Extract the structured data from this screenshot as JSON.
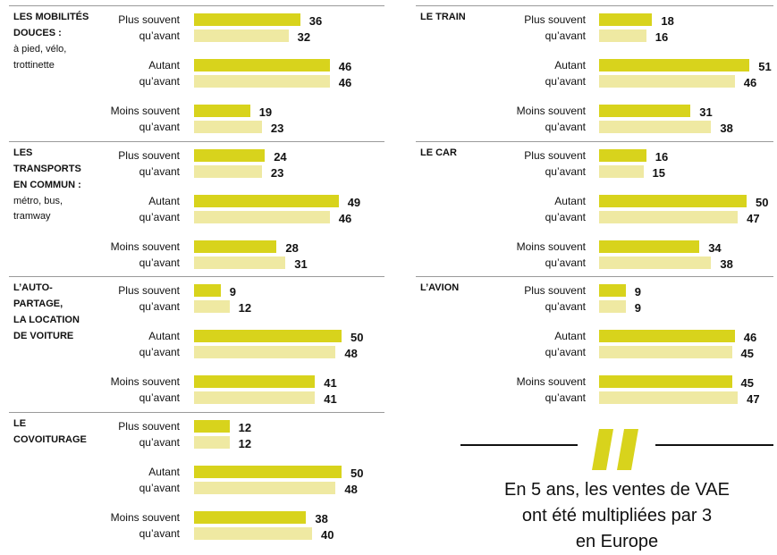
{
  "chart_data": [
    {
      "type": "bar",
      "title": [
        "LES MOBILITÉS",
        "DOUCES :"
      ],
      "subtitle": [
        "à pied, vélo,",
        "trottinette"
      ],
      "categories": [
        [
          "Plus souvent",
          "qu’avant"
        ],
        [
          "Autant",
          "qu’avant"
        ],
        [
          "Moins souvent",
          "qu’avant"
        ]
      ],
      "series": [
        {
          "color": "#d8d31c",
          "values": [
            36,
            46,
            19
          ]
        },
        {
          "color": "#efe9a2",
          "values": [
            32,
            46,
            23
          ]
        }
      ]
    },
    {
      "type": "bar",
      "title": [
        "LES",
        "TRANSPORTS",
        "EN COMMUN :"
      ],
      "subtitle": [
        "métro, bus,",
        "tramway"
      ],
      "categories": [
        [
          "Plus souvent",
          "qu’avant"
        ],
        [
          "Autant",
          "qu’avant"
        ],
        [
          "Moins souvent",
          "qu’avant"
        ]
      ],
      "series": [
        {
          "color": "#d8d31c",
          "values": [
            24,
            49,
            28
          ]
        },
        {
          "color": "#efe9a2",
          "values": [
            23,
            46,
            31
          ]
        }
      ]
    },
    {
      "type": "bar",
      "title": [
        "L’AUTO-",
        "PARTAGE,",
        "LA LOCATION",
        "DE VOITURE"
      ],
      "categories": [
        [
          "Plus souvent",
          "qu’avant"
        ],
        [
          "Autant",
          "qu’avant"
        ],
        [
          "Moins souvent",
          "qu’avant"
        ]
      ],
      "series": [
        {
          "color": "#d8d31c",
          "values": [
            9,
            50,
            41
          ]
        },
        {
          "color": "#efe9a2",
          "values": [
            12,
            48,
            41
          ]
        }
      ]
    },
    {
      "type": "bar",
      "title": [
        "LE",
        "COVOITURAGE"
      ],
      "categories": [
        [
          "Plus souvent",
          "qu’avant"
        ],
        [
          "Autant",
          "qu’avant"
        ],
        [
          "Moins souvent",
          "qu’avant"
        ]
      ],
      "series": [
        {
          "color": "#d8d31c",
          "values": [
            12,
            50,
            38
          ]
        },
        {
          "color": "#efe9a2",
          "values": [
            12,
            48,
            40
          ]
        }
      ]
    },
    {
      "type": "bar",
      "title": [
        "LE TRAIN"
      ],
      "categories": [
        [
          "Plus souvent",
          "qu’avant"
        ],
        [
          "Autant",
          "qu’avant"
        ],
        [
          "Moins souvent",
          "qu’avant"
        ]
      ],
      "series": [
        {
          "color": "#d8d31c",
          "values": [
            18,
            51,
            31
          ]
        },
        {
          "color": "#efe9a2",
          "values": [
            16,
            46,
            38
          ]
        }
      ]
    },
    {
      "type": "bar",
      "title": [
        "LE CAR"
      ],
      "categories": [
        [
          "Plus souvent",
          "qu’avant"
        ],
        [
          "Autant",
          "qu’avant"
        ],
        [
          "Moins souvent",
          "qu’avant"
        ]
      ],
      "series": [
        {
          "color": "#d8d31c",
          "values": [
            16,
            50,
            34
          ]
        },
        {
          "color": "#efe9a2",
          "values": [
            15,
            47,
            38
          ]
        }
      ]
    },
    {
      "type": "bar",
      "title": [
        "L’AVION"
      ],
      "categories": [
        [
          "Plus souvent",
          "qu’avant"
        ],
        [
          "Autant",
          "qu’avant"
        ],
        [
          "Moins souvent",
          "qu’avant"
        ]
      ],
      "series": [
        {
          "color": "#d8d31c",
          "values": [
            9,
            46,
            45
          ]
        },
        {
          "color": "#efe9a2",
          "values": [
            9,
            45,
            47
          ]
        }
      ]
    }
  ],
  "quote": {
    "lines": [
      "En 5 ans, les ventes de VAE",
      "ont été multipliées par 3",
      "en Europe"
    ]
  }
}
